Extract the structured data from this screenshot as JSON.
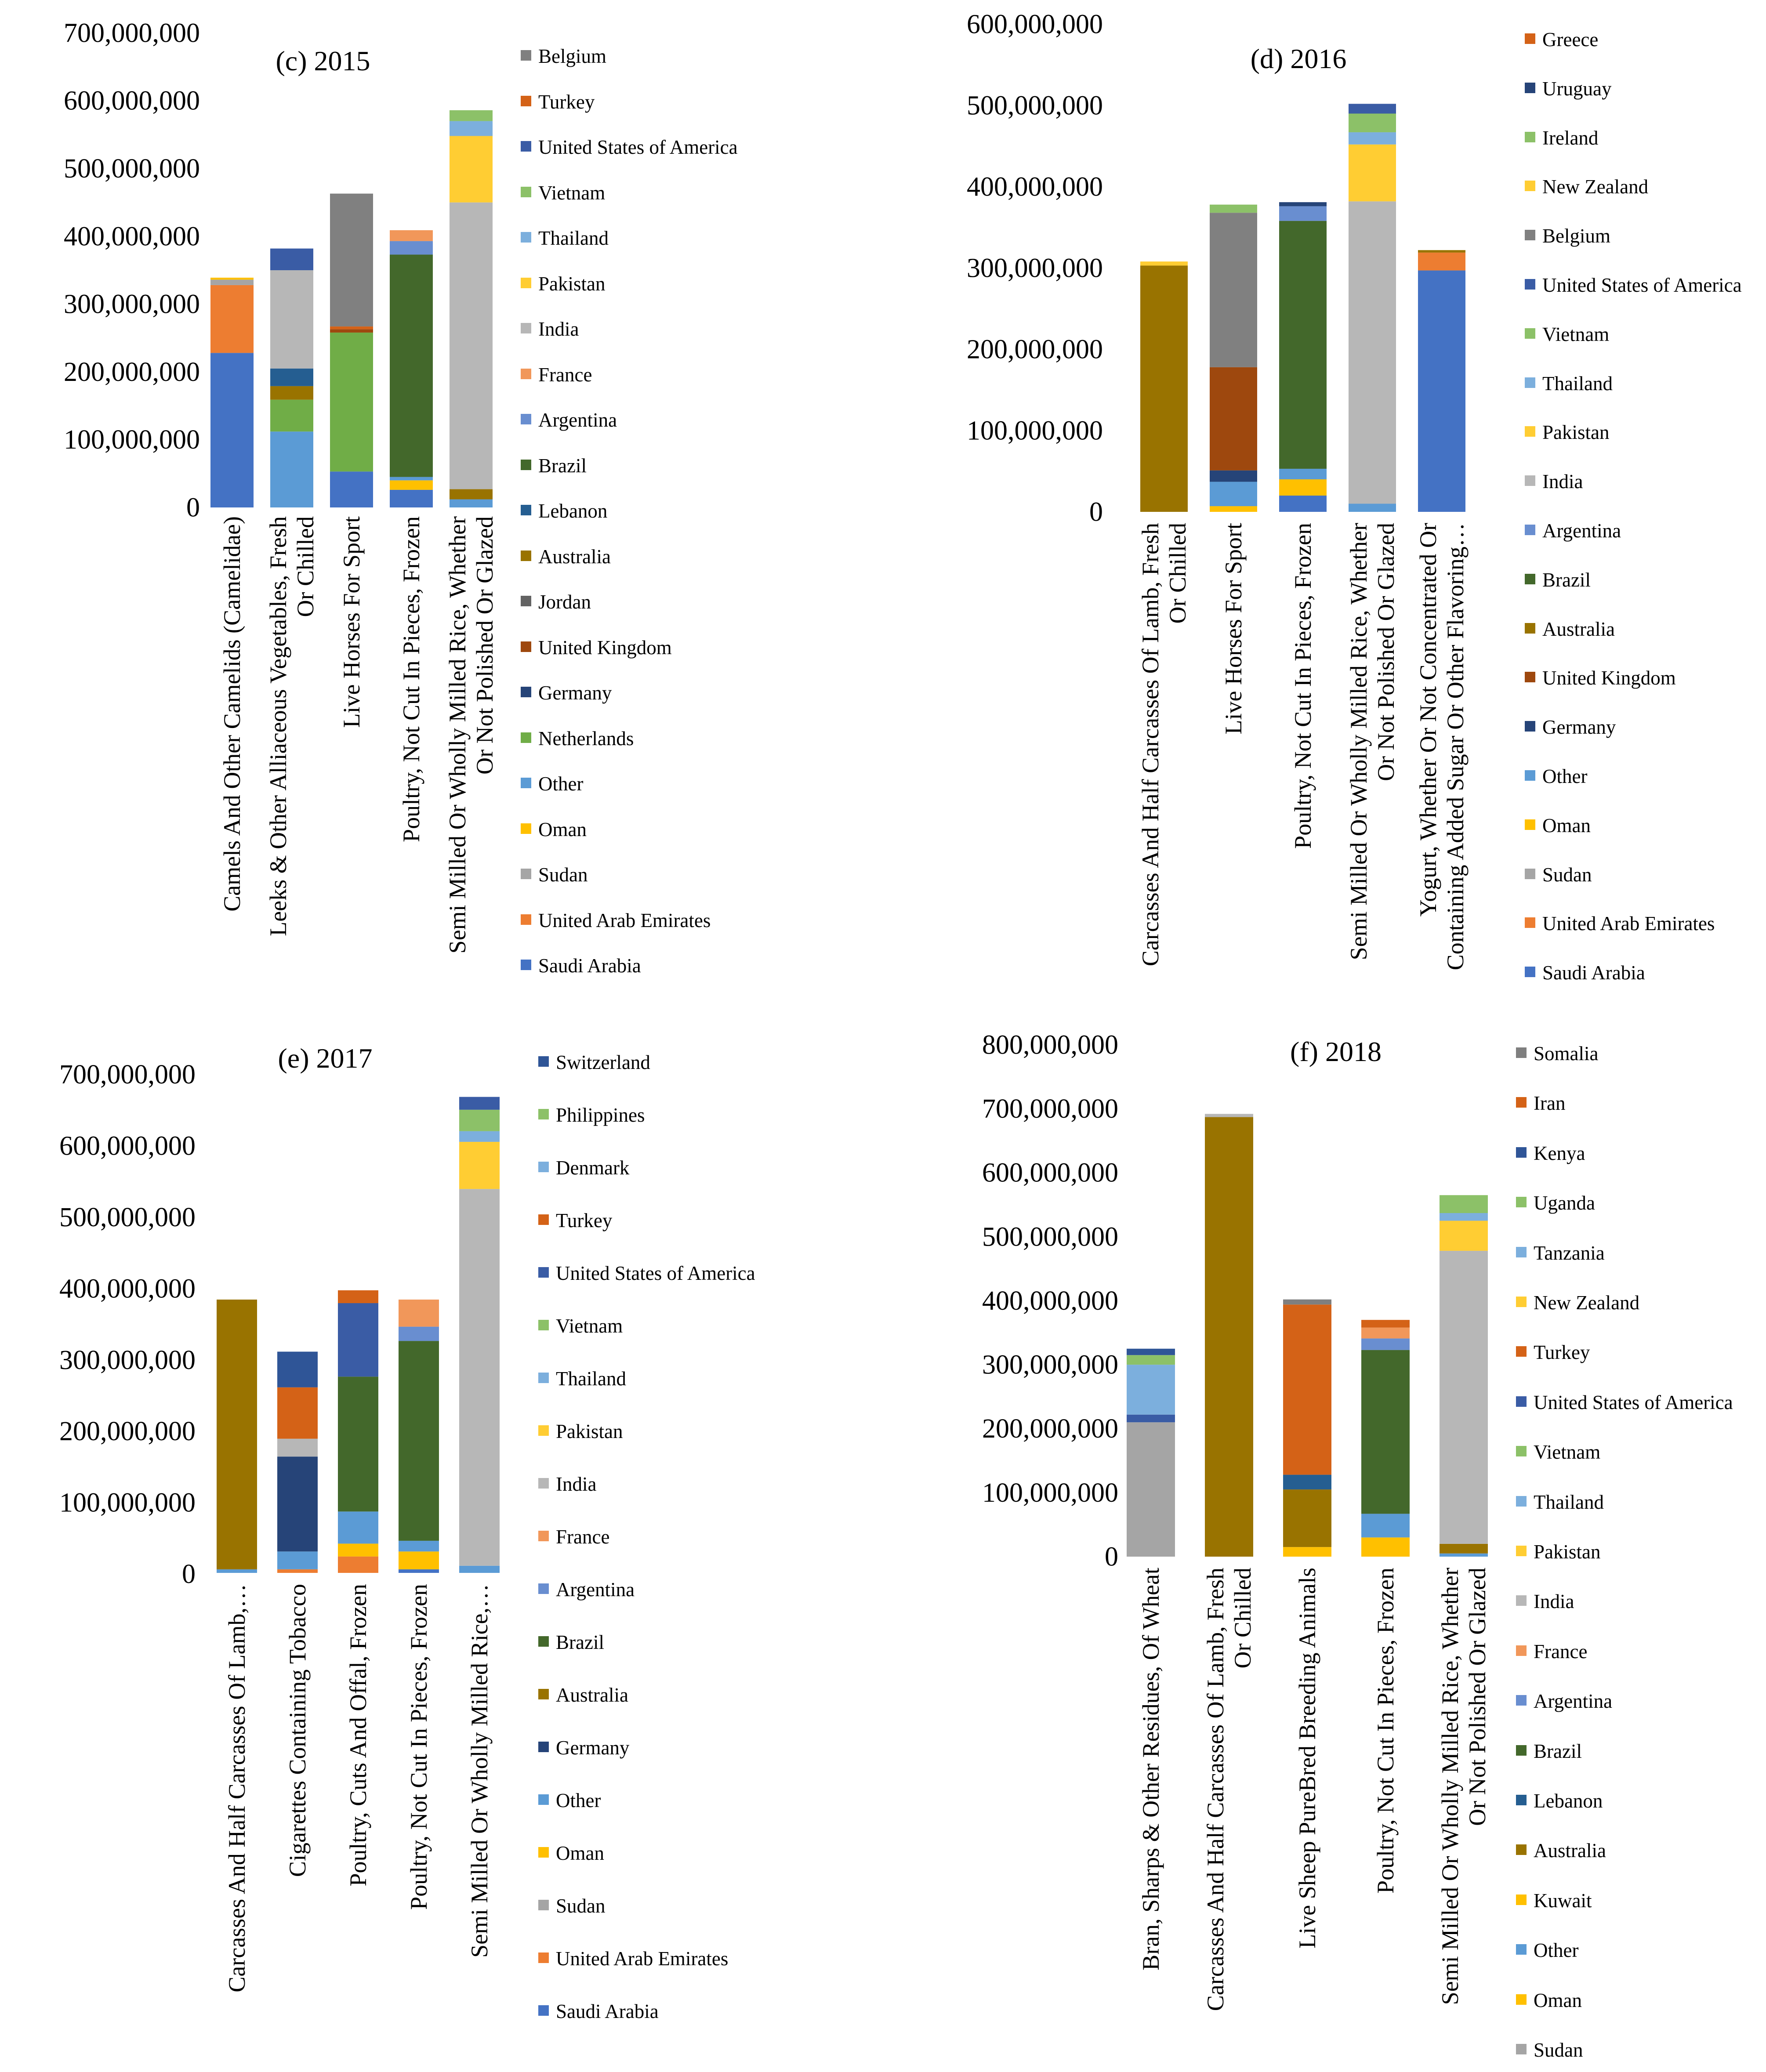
{
  "colors": {
    "Saudi Arabia": "#4472C4",
    "United Arab Emirates": "#ED7D31",
    "Sudan": "#A5A5A5",
    "Oman": "#FFC000",
    "Other": "#5B9BD5",
    "Netherlands": "#70AD47",
    "Germany": "#264478",
    "United Kingdom": "#9E480E",
    "Jordan": "#636363",
    "Australia": "#997300",
    "Lebanon": "#255E91",
    "Brazil": "#43682B",
    "Argentina": "#698ED0",
    "France": "#F1975A",
    "India": "#B7B7B7",
    "Pakistan": "#FFCD33",
    "Thailand": "#7CAFDD",
    "Vietnam": "#8CC168",
    "United States of America": "#3A5CA5",
    "Turkey": "#D46217",
    "Belgium": "#808080",
    "Ireland": "#8CC168",
    "Uruguay": "#264478",
    "Greece": "#D46217",
    "Switzerland": "#2F5597",
    "Philippines": "#8CC168",
    "Denmark": "#7CAFDD",
    "Kuwait": "#FFC000",
    "Somalia": "#7F7F7F",
    "Iran": "#D46217",
    "Kenya": "#2F5597",
    "Uganda": "#8CC168",
    "Tanzania": "#7CAFDD",
    "New Zealand": "#FFCD33"
  },
  "chart_data": [
    {
      "type": "bar",
      "stacked": true,
      "title": "(c) 2015",
      "ylim": [
        0,
        700000000
      ],
      "ytick_labels": [
        "0",
        "100,000,000",
        "200,000,000",
        "300,000,000",
        "400,000,000",
        "500,000,000",
        "600,000,000",
        "700,000,000"
      ],
      "categories": [
        [
          "Camels And Other Camelids (Camelidae)"
        ],
        [
          "Leeks & Other Alliaceous Vegetables, Fresh",
          "Or Chilled"
        ],
        [
          "Live Horses For Sport"
        ],
        [
          "Poultry, Not Cut In Pieces, Frozen"
        ],
        [
          "Semi Milled Or Wholly Milled Rice, Whether",
          "Or Not Polished Or Glazed"
        ]
      ],
      "legend": [
        "Belgium",
        "Turkey",
        "United States of America",
        "Vietnam",
        "Thailand",
        "Pakistan",
        "India",
        "France",
        "Argentina",
        "Brazil",
        "Lebanon",
        "Australia",
        "Jordan",
        "United Kingdom",
        "Germany",
        "Netherlands",
        "Other",
        "Oman",
        "Sudan",
        "United Arab Emirates",
        "Saudi Arabia"
      ],
      "series": [
        {
          "name": "Saudi Arabia",
          "values": [
            228000000,
            0,
            53000000,
            26000000,
            0
          ]
        },
        {
          "name": "United Arab Emirates",
          "values": [
            100000000,
            0,
            0,
            0,
            0
          ]
        },
        {
          "name": "Sudan",
          "values": [
            8000000,
            0,
            0,
            0,
            0
          ]
        },
        {
          "name": "Oman",
          "values": [
            3000000,
            0,
            0,
            14000000,
            0
          ]
        },
        {
          "name": "Other",
          "values": [
            0,
            112000000,
            0,
            5000000,
            12000000
          ]
        },
        {
          "name": "Netherlands",
          "values": [
            0,
            47000000,
            205000000,
            0,
            0
          ]
        },
        {
          "name": "Germany",
          "values": [
            0,
            0,
            0,
            0,
            0
          ]
        },
        {
          "name": "United Kingdom",
          "values": [
            0,
            0,
            5000000,
            0,
            0
          ]
        },
        {
          "name": "Jordan",
          "values": [
            0,
            0,
            0,
            0,
            0
          ]
        },
        {
          "name": "Australia",
          "values": [
            0,
            20000000,
            0,
            0,
            15000000
          ]
        },
        {
          "name": "Lebanon",
          "values": [
            0,
            26000000,
            0,
            0,
            0
          ]
        },
        {
          "name": "Brazil",
          "values": [
            0,
            0,
            0,
            328000000,
            0
          ]
        },
        {
          "name": "Argentina",
          "values": [
            0,
            0,
            0,
            20000000,
            0
          ]
        },
        {
          "name": "France",
          "values": [
            0,
            0,
            0,
            16000000,
            0
          ]
        },
        {
          "name": "India",
          "values": [
            0,
            145000000,
            0,
            0,
            423000000
          ]
        },
        {
          "name": "Pakistan",
          "values": [
            0,
            0,
            0,
            0,
            98000000
          ]
        },
        {
          "name": "Thailand",
          "values": [
            0,
            0,
            0,
            0,
            22000000
          ]
        },
        {
          "name": "Vietnam",
          "values": [
            0,
            0,
            0,
            0,
            16000000
          ]
        },
        {
          "name": "United States of America",
          "values": [
            0,
            32000000,
            0,
            0,
            0
          ]
        },
        {
          "name": "Turkey",
          "values": [
            0,
            0,
            4000000,
            0,
            0
          ]
        },
        {
          "name": "Belgium",
          "values": [
            0,
            0,
            196000000,
            0,
            0
          ]
        }
      ]
    },
    {
      "type": "bar",
      "stacked": true,
      "title": "(d) 2016",
      "ylim": [
        0,
        600000000
      ],
      "ytick_labels": [
        "0",
        "100,000,000",
        "200,000,000",
        "300,000,000",
        "400,000,000",
        "500,000,000",
        "600,000,000"
      ],
      "categories": [
        [
          "Carcasses And Half Carcasses Of Lamb, Fresh",
          "Or Chilled"
        ],
        [
          "Live Horses For Sport"
        ],
        [
          "Poultry, Not Cut In Pieces, Frozen"
        ],
        [
          "Semi Milled Or Wholly Milled Rice, Whether",
          "Or Not Polished Or Glazed"
        ],
        [
          "Yogurt, Whether Or Not Concentrated Or",
          "Containing Added Sugar Or Other Flavoring…"
        ]
      ],
      "legend": [
        "Greece",
        "Uruguay",
        "Ireland",
        "New Zealand",
        "Belgium",
        "United States of America",
        "Vietnam",
        "Thailand",
        "Pakistan",
        "India",
        "Argentina",
        "Brazil",
        "Australia",
        "United Kingdom",
        "Germany",
        "Other",
        "Oman",
        "Sudan",
        "United Arab Emirates",
        "Saudi Arabia"
      ],
      "series": [
        {
          "name": "Saudi Arabia",
          "values": [
            0,
            0,
            20000000,
            0,
            297000000
          ]
        },
        {
          "name": "United Arab Emirates",
          "values": [
            0,
            0,
            0,
            0,
            22000000
          ]
        },
        {
          "name": "Sudan",
          "values": [
            0,
            0,
            0,
            0,
            0
          ]
        },
        {
          "name": "Oman",
          "values": [
            0,
            7000000,
            20000000,
            0,
            0
          ]
        },
        {
          "name": "Other",
          "values": [
            0,
            30000000,
            13000000,
            10000000,
            0
          ]
        },
        {
          "name": "Germany",
          "values": [
            0,
            14000000,
            0,
            0,
            0
          ]
        },
        {
          "name": "United Kingdom",
          "values": [
            0,
            127000000,
            0,
            0,
            0
          ]
        },
        {
          "name": "Australia",
          "values": [
            303000000,
            0,
            0,
            0,
            3000000
          ]
        },
        {
          "name": "Brazil",
          "values": [
            0,
            0,
            305000000,
            0,
            0
          ]
        },
        {
          "name": "Argentina",
          "values": [
            0,
            0,
            18000000,
            0,
            0
          ]
        },
        {
          "name": "India",
          "values": [
            0,
            0,
            0,
            372000000,
            0
          ]
        },
        {
          "name": "Pakistan",
          "values": [
            0,
            0,
            0,
            70000000,
            0
          ]
        },
        {
          "name": "Thailand",
          "values": [
            0,
            0,
            0,
            15000000,
            0
          ]
        },
        {
          "name": "Vietnam",
          "values": [
            0,
            0,
            0,
            23000000,
            0
          ]
        },
        {
          "name": "United States of America",
          "values": [
            0,
            0,
            0,
            12000000,
            0
          ]
        },
        {
          "name": "Belgium",
          "values": [
            0,
            190000000,
            0,
            0,
            0
          ]
        },
        {
          "name": "New Zealand",
          "values": [
            5000000,
            0,
            0,
            0,
            0
          ]
        },
        {
          "name": "Ireland",
          "values": [
            0,
            10000000,
            0,
            0,
            0
          ]
        },
        {
          "name": "Uruguay",
          "values": [
            0,
            0,
            5000000,
            0,
            0
          ]
        },
        {
          "name": "Greece",
          "values": [
            0,
            0,
            0,
            0,
            0
          ]
        }
      ]
    },
    {
      "type": "bar",
      "stacked": true,
      "title": "(e) 2017",
      "ylim": [
        0,
        700000000
      ],
      "ytick_labels": [
        "0",
        "100,000,000",
        "200,000,000",
        "300,000,000",
        "400,000,000",
        "500,000,000",
        "600,000,000",
        "700,000,000"
      ],
      "categories": [
        [
          "Carcasses And Half Carcasses Of Lamb,…"
        ],
        [
          "Cigarettes Containing Tobacco"
        ],
        [
          "Poultry, Cuts And Offal, Frozen"
        ],
        [
          "Poultry, Not Cut In Pieces, Frozen"
        ],
        [
          "Semi Milled Or Wholly Milled Rice,…"
        ]
      ],
      "legend": [
        "Switzerland",
        "Philippines",
        "Denmark",
        "Turkey",
        "United States of America",
        "Vietnam",
        "Thailand",
        "Pakistan",
        "India",
        "France",
        "Argentina",
        "Brazil",
        "Australia",
        "Germany",
        "Other",
        "Oman",
        "Sudan",
        "United Arab Emirates",
        "Saudi Arabia"
      ],
      "series": [
        {
          "name": "Saudi Arabia",
          "values": [
            0,
            0,
            0,
            5000000,
            0
          ]
        },
        {
          "name": "United Arab Emirates",
          "values": [
            0,
            5000000,
            23000000,
            0,
            0
          ]
        },
        {
          "name": "Sudan",
          "values": [
            0,
            0,
            0,
            0,
            0
          ]
        },
        {
          "name": "Oman",
          "values": [
            0,
            0,
            18000000,
            25000000,
            0
          ]
        },
        {
          "name": "Other",
          "values": [
            5000000,
            25000000,
            45000000,
            15000000,
            10000000
          ]
        },
        {
          "name": "Germany",
          "values": [
            0,
            133000000,
            0,
            0,
            0
          ]
        },
        {
          "name": "Australia",
          "values": [
            378000000,
            0,
            0,
            0,
            0
          ]
        },
        {
          "name": "Brazil",
          "values": [
            0,
            0,
            189000000,
            280000000,
            0
          ]
        },
        {
          "name": "Argentina",
          "values": [
            0,
            0,
            0,
            20000000,
            0
          ]
        },
        {
          "name": "France",
          "values": [
            0,
            0,
            0,
            38000000,
            0
          ]
        },
        {
          "name": "India",
          "values": [
            0,
            25000000,
            0,
            0,
            528000000
          ]
        },
        {
          "name": "Pakistan",
          "values": [
            0,
            0,
            0,
            0,
            66000000
          ]
        },
        {
          "name": "Thailand",
          "values": [
            0,
            0,
            0,
            0,
            15000000
          ]
        },
        {
          "name": "Vietnam",
          "values": [
            0,
            0,
            0,
            0,
            30000000
          ]
        },
        {
          "name": "United States of America",
          "values": [
            0,
            0,
            103000000,
            0,
            18000000
          ]
        },
        {
          "name": "Turkey",
          "values": [
            0,
            72000000,
            18000000,
            0,
            0
          ]
        },
        {
          "name": "Denmark",
          "values": [
            0,
            0,
            0,
            0,
            0
          ]
        },
        {
          "name": "Philippines",
          "values": [
            0,
            0,
            0,
            0,
            0
          ]
        },
        {
          "name": "Switzerland",
          "values": [
            0,
            50000000,
            0,
            0,
            0
          ]
        }
      ]
    },
    {
      "type": "bar",
      "stacked": true,
      "title": "(f) 2018",
      "ylim": [
        0,
        800000000
      ],
      "ytick_labels": [
        "0",
        "100,000,000",
        "200,000,000",
        "300,000,000",
        "400,000,000",
        "500,000,000",
        "600,000,000",
        "700,000,000",
        "800,000,000"
      ],
      "categories": [
        [
          "Bran, Sharps & Other Residues, Of Wheat"
        ],
        [
          "Carcasses And Half Carcasses Of Lamb, Fresh",
          "Or Chilled"
        ],
        [
          "Live Sheep PureBred Breeding Animals"
        ],
        [
          "Poultry, Not Cut In Pieces, Frozen"
        ],
        [
          "Semi Milled Or Wholly Milled Rice, Whether",
          "Or Not Polished Or Glazed"
        ]
      ],
      "legend": [
        "Somalia",
        "Iran",
        "Kenya",
        "Uganda",
        "Tanzania",
        "New Zealand",
        "Turkey",
        "United States of America",
        "Vietnam",
        "Thailand",
        "Pakistan",
        "India",
        "France",
        "Argentina",
        "Brazil",
        "Lebanon",
        "Australia",
        "Kuwait",
        "Other",
        "Oman",
        "Sudan"
      ],
      "series": [
        {
          "name": "Sudan",
          "values": [
            210000000,
            0,
            0,
            0,
            0
          ]
        },
        {
          "name": "Oman",
          "values": [
            0,
            0,
            0,
            30000000,
            0
          ]
        },
        {
          "name": "Other",
          "values": [
            0,
            0,
            0,
            37000000,
            5000000
          ]
        },
        {
          "name": "Kuwait",
          "values": [
            0,
            0,
            15000000,
            0,
            0
          ]
        },
        {
          "name": "Australia",
          "values": [
            0,
            687000000,
            90000000,
            0,
            15000000
          ]
        },
        {
          "name": "Lebanon",
          "values": [
            0,
            0,
            23000000,
            0,
            0
          ]
        },
        {
          "name": "Brazil",
          "values": [
            0,
            0,
            0,
            256000000,
            0
          ]
        },
        {
          "name": "Argentina",
          "values": [
            0,
            0,
            0,
            18000000,
            0
          ]
        },
        {
          "name": "France",
          "values": [
            0,
            0,
            0,
            17000000,
            0
          ]
        },
        {
          "name": "India",
          "values": [
            0,
            5000000,
            0,
            0,
            458000000
          ]
        },
        {
          "name": "Pakistan",
          "values": [
            0,
            0,
            0,
            0,
            47000000
          ]
        },
        {
          "name": "Thailand",
          "values": [
            0,
            0,
            0,
            0,
            12000000
          ]
        },
        {
          "name": "Vietnam",
          "values": [
            0,
            0,
            0,
            0,
            28000000
          ]
        },
        {
          "name": "United States of America",
          "values": [
            12000000,
            0,
            0,
            0,
            0
          ]
        },
        {
          "name": "Turkey",
          "values": [
            0,
            0,
            0,
            12000000,
            0
          ]
        },
        {
          "name": "New Zealand",
          "values": [
            0,
            0,
            0,
            0,
            0
          ]
        },
        {
          "name": "Tanzania",
          "values": [
            78000000,
            0,
            0,
            0,
            0
          ]
        },
        {
          "name": "Uganda",
          "values": [
            15000000,
            0,
            0,
            0,
            0
          ]
        },
        {
          "name": "Kenya",
          "values": [
            10000000,
            0,
            0,
            0,
            0
          ]
        },
        {
          "name": "Iran",
          "values": [
            0,
            0,
            266000000,
            0,
            0
          ]
        },
        {
          "name": "Somalia",
          "values": [
            0,
            0,
            8000000,
            0,
            0
          ]
        }
      ]
    }
  ]
}
